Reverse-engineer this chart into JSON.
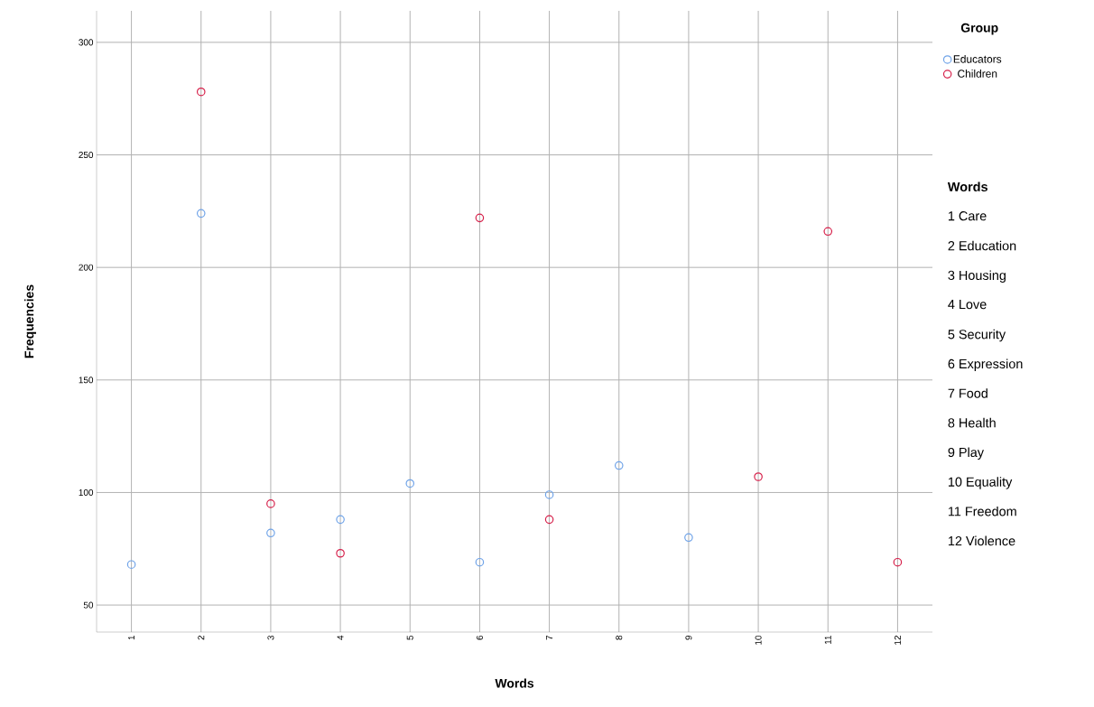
{
  "chart_data": {
    "type": "scatter",
    "xlabel": "Words",
    "ylabel": "Frequencies",
    "legend_title": "Group",
    "categories": [
      "1",
      "2",
      "3",
      "4",
      "5",
      "6",
      "7",
      "8",
      "9",
      "10",
      "11",
      "12"
    ],
    "series": [
      {
        "name": "Educators",
        "color": "#6fa3e8",
        "values": [
          68,
          224,
          82,
          88,
          104,
          69,
          99,
          112,
          80,
          null,
          null,
          null
        ]
      },
      {
        "name": "Children",
        "color": "#d6204a",
        "values": [
          null,
          278,
          95,
          73,
          null,
          222,
          88,
          null,
          null,
          107,
          216,
          69
        ]
      }
    ],
    "ylim": [
      38,
      314
    ],
    "yticks": [
      50,
      100,
      150,
      200,
      250,
      300
    ],
    "grid": true,
    "legend": "top right",
    "marker": "circle",
    "annotations": [
      "Words",
      "1 Care",
      "2 Education",
      "3 Housing",
      "4 Love",
      "5 Security",
      "6 Expression",
      "7 Food",
      "8 Health",
      "9 Play",
      "10 Equality",
      "11 Freedom",
      "12 Violence"
    ]
  }
}
